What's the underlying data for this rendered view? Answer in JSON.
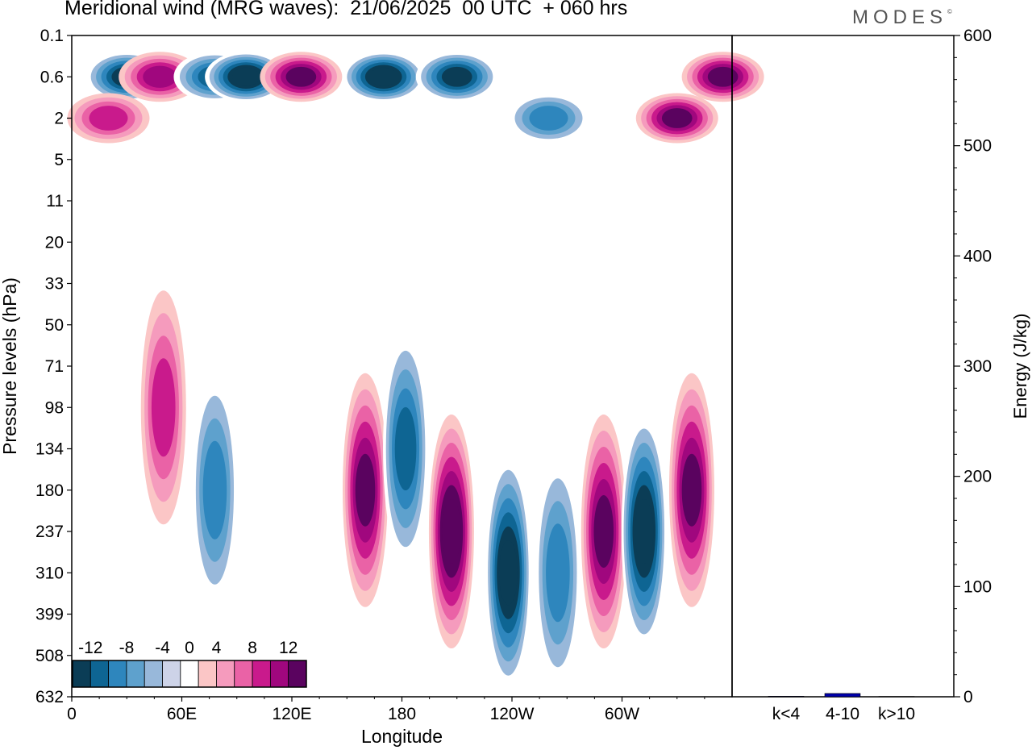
{
  "title": "Meridional wind (MRG waves):  21/06/2025  00 UTC  + 060 hrs",
  "logo": "MODES",
  "logo_mark": "©",
  "chart_data": [
    {
      "type": "heatmap",
      "title": "Meridional wind (MRG waves):  21/06/2025  00 UTC  + 060 hrs",
      "xlabel": "Longitude",
      "ylabel": "Pressure levels (hPa)",
      "x_ticks": [
        "0",
        "60E",
        "120E",
        "180",
        "120W",
        "60W"
      ],
      "x_tick_values": [
        0,
        60,
        120,
        180,
        240,
        300
      ],
      "xlim": [
        0,
        360
      ],
      "y_ticks": [
        "0.1",
        "0.6",
        "2",
        "5",
        "11",
        "20",
        "33",
        "50",
        "71",
        "98",
        "134",
        "180",
        "237",
        "310",
        "399",
        "508",
        "632"
      ],
      "y_scale": "categorical levels, top to bottom",
      "colorbar": {
        "labels": [
          "-12",
          "-8",
          "-4",
          "0",
          "4",
          "8",
          "12"
        ],
        "levels": [
          -14,
          -12,
          -10,
          -8,
          -6,
          -4,
          -2,
          2,
          4,
          6,
          8,
          10,
          12,
          14
        ],
        "colors": [
          "#0b3d56",
          "#0e6593",
          "#2e86bd",
          "#5ea1cd",
          "#98b8da",
          "#cdd3e8",
          "#ffffff",
          "#fbc6c6",
          "#f59bbd",
          "#ea62a6",
          "#c91a8c",
          "#a0077e",
          "#5a035f"
        ],
        "placement": "bottom-left"
      },
      "features": [
        {
          "lon": 30,
          "level": "0.6",
          "value": -12
        },
        {
          "lon": 48,
          "level": "0.6",
          "value": 10
        },
        {
          "lon": 20,
          "level": "2",
          "value": 8
        },
        {
          "lon": 78,
          "level": "0.6",
          "value": -10
        },
        {
          "lon": 95,
          "level": "0.6",
          "value": -14
        },
        {
          "lon": 125,
          "level": "0.6",
          "value": 12
        },
        {
          "lon": 170,
          "level": "0.6",
          "value": -14
        },
        {
          "lon": 210,
          "level": "0.6",
          "value": -12
        },
        {
          "lon": 260,
          "level": "2",
          "value": -8
        },
        {
          "lon": 330,
          "level": "2",
          "value": 12
        },
        {
          "lon": 355,
          "level": "0.6",
          "value": 12
        },
        {
          "lon": 160,
          "level": "180",
          "value": 12
        },
        {
          "lon": 182,
          "level": "134",
          "value": -10
        },
        {
          "lon": 207,
          "level": "237",
          "value": 14
        },
        {
          "lon": 238,
          "level": "310",
          "value": -14
        },
        {
          "lon": 265,
          "level": "310",
          "value": -8
        },
        {
          "lon": 290,
          "level": "237",
          "value": 12
        },
        {
          "lon": 312,
          "level": "237",
          "value": -14
        },
        {
          "lon": 338,
          "level": "180",
          "value": 12
        },
        {
          "lon": 78,
          "level": "180",
          "value": -8
        },
        {
          "lon": 50,
          "level": "98",
          "value": 8
        }
      ]
    },
    {
      "type": "bar",
      "categories": [
        "k<4",
        "4-10",
        "k>10"
      ],
      "values": [
        0.5,
        3,
        0.3
      ],
      "ylabel": "Energy (J/kg)",
      "ylim": [
        0,
        600
      ],
      "y_ticks": [
        "0",
        "100",
        "200",
        "300",
        "400",
        "500",
        "600"
      ],
      "bar_color": "#0000aa"
    }
  ]
}
